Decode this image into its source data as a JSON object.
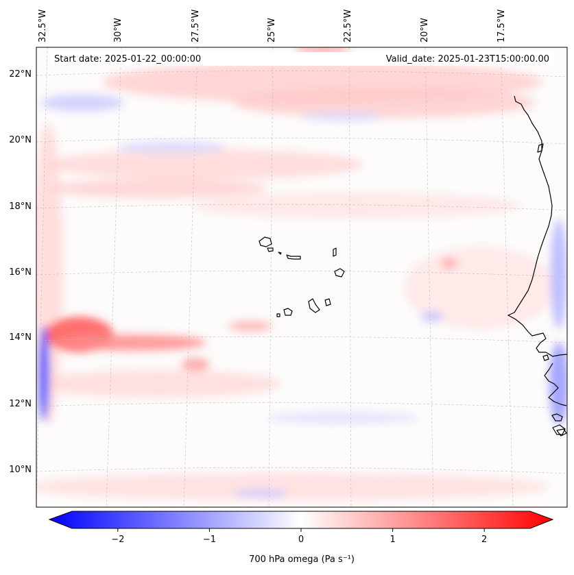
{
  "header": {
    "start_date": "Start date: 2025-01-22_00:00:00",
    "valid_date": "Valid_date: 2025-01-23T15:00:00.00"
  },
  "map": {
    "longitude_labels": [
      "32.5°W",
      "30°W",
      "27.5°W",
      "25°W",
      "22.5°W",
      "20°W",
      "17.5°W"
    ],
    "latitude_labels": [
      "22°N",
      "20°N",
      "18°N",
      "16°N",
      "14°N",
      "12°N",
      "10°N"
    ],
    "gridlines": "dashed",
    "coastlines": true,
    "field": "700 hPa omega",
    "colormap": "bwr",
    "colors": {
      "negative": "#0000ff",
      "zero": "#ffffff",
      "positive": "#ff0000"
    }
  },
  "colorbar": {
    "label": "700 hPa omega (Pa s⁻¹)",
    "ticks": [
      "−2",
      "−1",
      "0",
      "1",
      "2"
    ],
    "tick_values": [
      -2,
      -1,
      0,
      1,
      2
    ],
    "range": [
      -2.6,
      2.6
    ],
    "extend": "both"
  }
}
